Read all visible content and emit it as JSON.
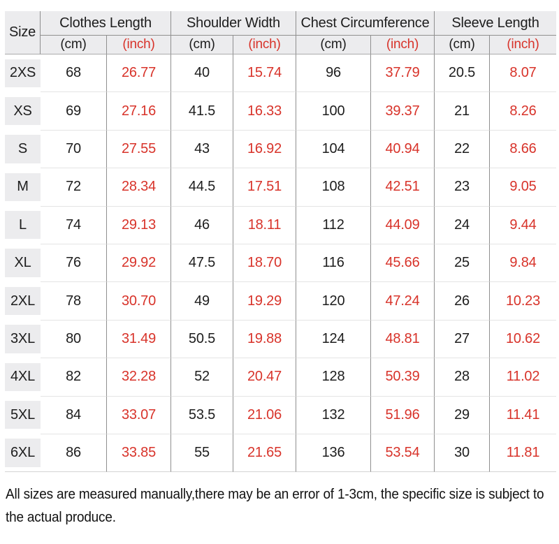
{
  "colors": {
    "accent_red": "#d8332a",
    "header_bg": "#ececee",
    "grid_line_dark": "#8f8f8f",
    "grid_line_light": "#e4e4e4",
    "header_rule": "#ababab",
    "bottom_rule": "#d4d4d4",
    "text": "#1d1d1d"
  },
  "chart_data": {
    "type": "table",
    "corner_header": "Size",
    "column_groups": [
      {
        "label": "Clothes Length",
        "sub_columns": [
          "(cm)",
          "(inch)"
        ]
      },
      {
        "label": "Shoulder Width",
        "sub_columns": [
          "(cm)",
          "(inch)"
        ]
      },
      {
        "label": "Chest Circumference",
        "sub_columns": [
          "(cm)",
          "(inch)"
        ]
      },
      {
        "label": "Sleeve Length",
        "sub_columns": [
          "(cm)",
          "(inch)"
        ]
      }
    ],
    "rows": [
      {
        "size": "2XS",
        "values": [
          "68",
          "26.77",
          "40",
          "15.74",
          "96",
          "37.79",
          "20.5",
          "8.07"
        ]
      },
      {
        "size": "XS",
        "values": [
          "69",
          "27.16",
          "41.5",
          "16.33",
          "100",
          "39.37",
          "21",
          "8.26"
        ]
      },
      {
        "size": "S",
        "values": [
          "70",
          "27.55",
          "43",
          "16.92",
          "104",
          "40.94",
          "22",
          "8.66"
        ]
      },
      {
        "size": "M",
        "values": [
          "72",
          "28.34",
          "44.5",
          "17.51",
          "108",
          "42.51",
          "23",
          "9.05"
        ]
      },
      {
        "size": "L",
        "values": [
          "74",
          "29.13",
          "46",
          "18.11",
          "112",
          "44.09",
          "24",
          "9.44"
        ]
      },
      {
        "size": "XL",
        "values": [
          "76",
          "29.92",
          "47.5",
          "18.70",
          "116",
          "45.66",
          "25",
          "9.84"
        ]
      },
      {
        "size": "2XL",
        "values": [
          "78",
          "30.70",
          "49",
          "19.29",
          "120",
          "47.24",
          "26",
          "10.23"
        ]
      },
      {
        "size": "3XL",
        "values": [
          "80",
          "31.49",
          "50.5",
          "19.88",
          "124",
          "48.81",
          "27",
          "10.62"
        ]
      },
      {
        "size": "4XL",
        "values": [
          "82",
          "32.28",
          "52",
          "20.47",
          "128",
          "50.39",
          "28",
          "11.02"
        ]
      },
      {
        "size": "5XL",
        "values": [
          "84",
          "33.07",
          "53.5",
          "21.06",
          "132",
          "51.96",
          "29",
          "11.41"
        ]
      },
      {
        "size": "6XL",
        "values": [
          "86",
          "33.85",
          "55",
          "21.65",
          "136",
          "53.54",
          "30",
          "11.81"
        ]
      }
    ]
  },
  "footer": {
    "note": "All sizes are measured manually,there may be an error of 1-3cm, the specific size is subject to the actual produce."
  }
}
